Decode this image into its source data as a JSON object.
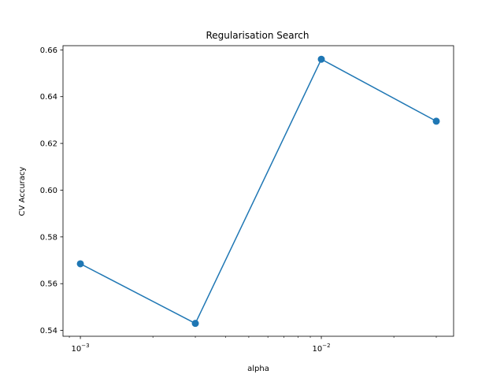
{
  "chart_data": {
    "type": "line",
    "title": "Regularisation Search",
    "xlabel": "alpha",
    "ylabel": "CV Accuracy",
    "xscale": "log",
    "x_ticks": [
      0.001,
      0.01
    ],
    "x_tick_labels": [
      {
        "base": "10",
        "exp": "−3"
      },
      {
        "base": "10",
        "exp": "−2"
      }
    ],
    "y_ticks": [
      0.54,
      0.56,
      0.58,
      0.6,
      0.62,
      0.64,
      0.66
    ],
    "y_tick_labels": [
      "0.54",
      "0.56",
      "0.58",
      "0.60",
      "0.62",
      "0.64",
      "0.66"
    ],
    "ylim": [
      0.5375,
      0.6618
    ],
    "xlim": [
      0.000847,
      0.0354
    ],
    "grid": false,
    "series": [
      {
        "x": [
          0.001,
          0.003,
          0.01,
          0.03
        ],
        "y": [
          0.5685,
          0.543,
          0.656,
          0.6295
        ],
        "color": "#1f77b4",
        "marker": "circle"
      }
    ]
  }
}
